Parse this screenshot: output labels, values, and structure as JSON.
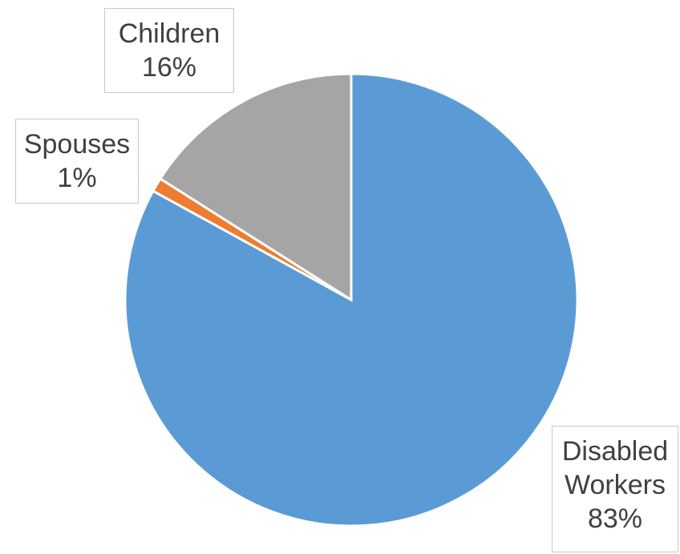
{
  "chart_data": {
    "type": "pie",
    "title": "",
    "start_angle_deg": 0,
    "direction": "clockwise",
    "slices": [
      {
        "name": "Disabled Workers",
        "label_lines": [
          "Disabled",
          "Workers"
        ],
        "value": 83,
        "pct_label": "83%",
        "color": "#5B9BD5"
      },
      {
        "name": "Spouses",
        "label_lines": [
          "Spouses"
        ],
        "value": 1,
        "pct_label": "1%",
        "color": "#ED7D31"
      },
      {
        "name": "Children",
        "label_lines": [
          "Children"
        ],
        "value": 16,
        "pct_label": "16%",
        "color": "#A5A5A5"
      }
    ],
    "legend": "none",
    "label_style": "boxed callouts outside"
  }
}
